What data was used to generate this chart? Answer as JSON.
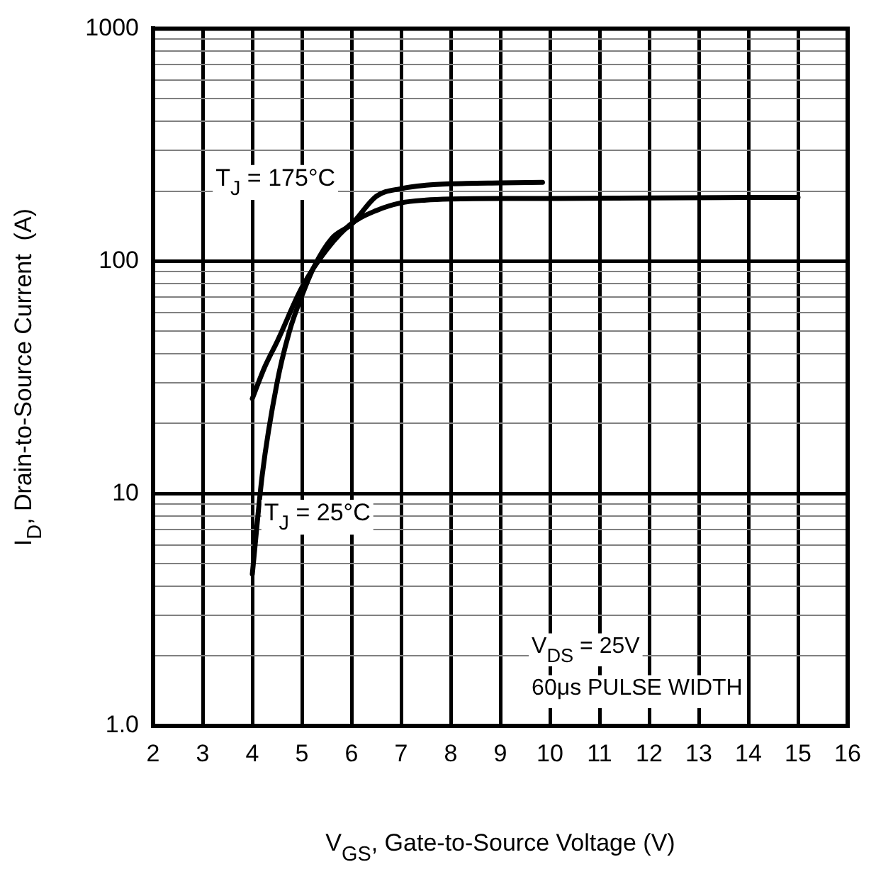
{
  "chart_data": {
    "type": "line",
    "xlabel": "V$_{GS}$, Gate-to-Source Voltage (V)",
    "ylabel": "I$_{D}$, Drain-to-Source Current  (A)",
    "x": [
      4,
      4.25,
      4.5,
      5,
      5.5,
      6,
      6.5,
      7,
      7.5,
      8,
      9,
      10,
      12,
      15
    ],
    "series": [
      {
        "name": "T$_{J}$ = 175°C",
        "color": "#000000",
        "values": [
          25.6,
          35,
          45,
          77,
          112,
          145,
          165,
          178,
          183,
          185,
          186,
          186,
          187,
          188
        ]
      },
      {
        "name": "T$_{J}$ = 25°C",
        "color": "#000000",
        "x": [
          4,
          4.2,
          4.5,
          4.75,
          5,
          5.25,
          5.6,
          6,
          6.5,
          7,
          7.5,
          8,
          9,
          9.85
        ],
        "values": [
          4.5,
          12,
          30,
          50,
          71,
          95,
          125,
          144,
          190,
          205,
          212,
          215,
          217,
          218
        ]
      }
    ],
    "log": "y",
    "xlim": [
      2,
      16
    ],
    "ylim": [
      1,
      1000
    ],
    "xticks": [
      2,
      3,
      4,
      5,
      6,
      7,
      8,
      9,
      10,
      11,
      12,
      13,
      14,
      15,
      16
    ],
    "yticks": [
      {
        "value": 1,
        "label": "1.0"
      },
      {
        "value": 2,
        "label": null
      },
      {
        "value": 3,
        "label": null
      },
      {
        "value": 4,
        "label": null
      },
      {
        "value": 5,
        "label": null
      },
      {
        "value": 6,
        "label": null
      },
      {
        "value": 7,
        "label": null
      },
      {
        "value": 8,
        "label": null
      },
      {
        "value": 9,
        "label": null
      },
      10,
      {
        "value": 20,
        "label": null
      },
      {
        "value": 30,
        "label": null
      },
      {
        "value": 40,
        "label": null
      },
      {
        "value": 50,
        "label": null
      },
      {
        "value": 60,
        "label": null
      },
      {
        "value": 70,
        "label": null
      },
      {
        "value": 80,
        "label": null
      },
      {
        "value": 90,
        "label": null
      },
      100,
      {
        "value": 200,
        "label": null
      },
      {
        "value": 300,
        "label": null
      },
      {
        "value": 400,
        "label": null
      },
      {
        "value": 500,
        "label": null
      },
      {
        "value": 600,
        "label": null
      },
      {
        "value": 700,
        "label": null
      },
      {
        "value": 800,
        "label": null
      },
      {
        "value": 900,
        "label": null
      },
      1000
    ],
    "grid": true,
    "legend": false,
    "marker": "none",
    "line_style": "solid",
    "annotations": [
      "V$_{DS}$ = 25V",
      "60μs PULSE WIDTH"
    ]
  }
}
